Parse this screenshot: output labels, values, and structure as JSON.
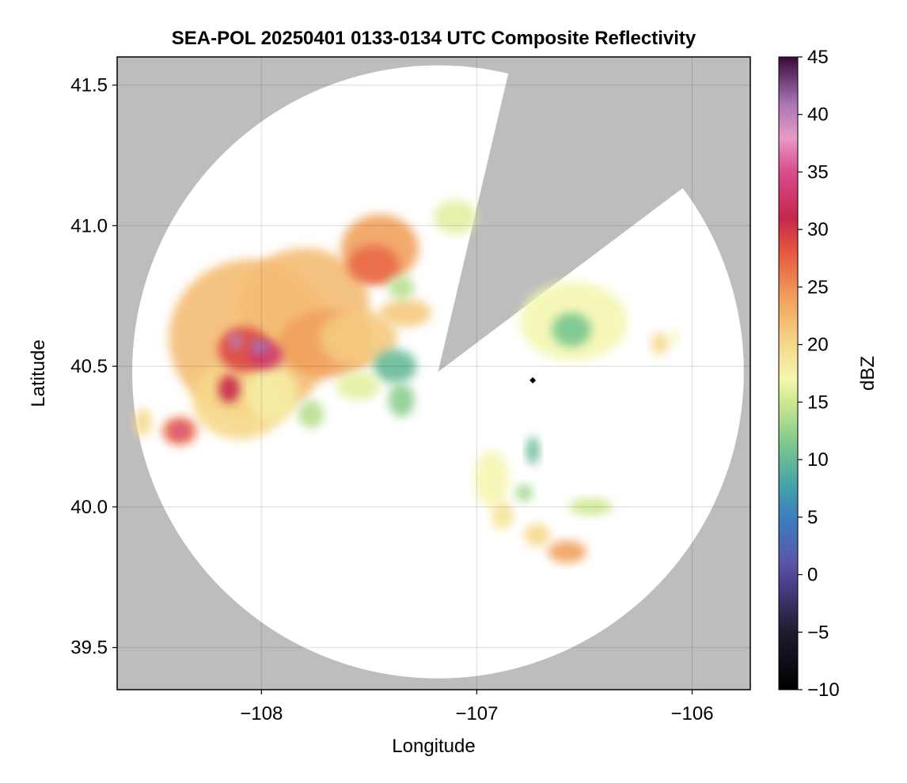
{
  "chart_data": {
    "type": "heatmap",
    "title": "SEA-POL 20250401 0133-0134 UTC Composite Reflectivity",
    "xlabel": "Longitude",
    "ylabel": "Latitude",
    "xlim": [
      -108.67,
      -105.73
    ],
    "ylim": [
      39.35,
      41.6
    ],
    "xticks": [
      -108,
      -107,
      -106
    ],
    "xtick_labels": [
      "−108",
      "−107",
      "−106"
    ],
    "yticks": [
      39.5,
      40.0,
      40.5,
      41.0,
      41.5
    ],
    "ytick_labels": [
      "39.5",
      "40.0",
      "40.5",
      "41.0",
      "41.5"
    ],
    "grid": true,
    "background_color": "#bdbdbd",
    "radar": {
      "center_lon": -107.18,
      "center_lat": 40.48,
      "range_lon_deg": 1.42,
      "range_lat_deg": 1.09,
      "blocked_sectors": [
        {
          "lon_left": -106.86,
          "lat_left": 41.52,
          "lon_right": -106.05,
          "lat_right": 41.13,
          "label": ""
        }
      ]
    },
    "marker": {
      "lon": -106.74,
      "lat": 40.45,
      "shape": "diamond",
      "color": "#000000"
    },
    "colorbar": {
      "label": "dBZ",
      "min": -10,
      "max": 45,
      "ticks": [
        -10,
        -5,
        0,
        5,
        10,
        15,
        20,
        25,
        30,
        35,
        40,
        45
      ],
      "tick_labels": [
        "−10",
        "−5",
        "0",
        "5",
        "10",
        "15",
        "20",
        "25",
        "30",
        "35",
        "40",
        "45"
      ],
      "colormap_stops": [
        {
          "v": -10,
          "c": "#000000"
        },
        {
          "v": -5,
          "c": "#1e1b2e"
        },
        {
          "v": -2,
          "c": "#3d3470"
        },
        {
          "v": 1,
          "c": "#5a55a8"
        },
        {
          "v": 5,
          "c": "#3c7fbf"
        },
        {
          "v": 8,
          "c": "#47a5a8"
        },
        {
          "v": 11,
          "c": "#76c58f"
        },
        {
          "v": 15,
          "c": "#cde88f"
        },
        {
          "v": 17,
          "c": "#f4f6b0"
        },
        {
          "v": 20,
          "c": "#f6d88a"
        },
        {
          "v": 24,
          "c": "#f1a15c"
        },
        {
          "v": 28,
          "c": "#e5583f"
        },
        {
          "v": 31,
          "c": "#c6264a"
        },
        {
          "v": 35,
          "c": "#d84d8c"
        },
        {
          "v": 38,
          "c": "#e79ac6"
        },
        {
          "v": 41,
          "c": "#a873b4"
        },
        {
          "v": 45,
          "c": "#3a0a3a"
        }
      ]
    },
    "echo_cells": [
      {
        "lon": -108.05,
        "lat": 40.6,
        "rlon": 0.38,
        "rlat": 0.28,
        "dbz": 22
      },
      {
        "lon": -107.8,
        "lat": 40.72,
        "rlon": 0.3,
        "rlat": 0.2,
        "dbz": 22
      },
      {
        "lon": -107.7,
        "lat": 40.58,
        "rlon": 0.22,
        "rlat": 0.12,
        "dbz": 24
      },
      {
        "lon": -107.55,
        "lat": 40.6,
        "rlon": 0.18,
        "rlat": 0.1,
        "dbz": 21
      },
      {
        "lon": -108.1,
        "lat": 40.38,
        "rlon": 0.22,
        "rlat": 0.14,
        "dbz": 20
      },
      {
        "lon": -107.95,
        "lat": 40.4,
        "rlon": 0.12,
        "rlat": 0.1,
        "dbz": 18
      },
      {
        "lon": -108.08,
        "lat": 40.56,
        "rlon": 0.12,
        "rlat": 0.08,
        "dbz": 29
      },
      {
        "lon": -107.98,
        "lat": 40.54,
        "rlon": 0.08,
        "rlat": 0.05,
        "dbz": 33
      },
      {
        "lon": -108.12,
        "lat": 40.59,
        "rlon": 0.03,
        "rlat": 0.03,
        "dbz": 40
      },
      {
        "lon": -108.01,
        "lat": 40.57,
        "rlon": 0.045,
        "rlat": 0.025,
        "dbz": 41
      },
      {
        "lon": -108.15,
        "lat": 40.42,
        "rlon": 0.05,
        "rlat": 0.05,
        "dbz": 31
      },
      {
        "lon": -108.38,
        "lat": 40.27,
        "rlon": 0.08,
        "rlat": 0.05,
        "dbz": 27
      },
      {
        "lon": -108.38,
        "lat": 40.27,
        "rlon": 0.035,
        "rlat": 0.025,
        "dbz": 35
      },
      {
        "lon": -108.55,
        "lat": 40.3,
        "rlon": 0.04,
        "rlat": 0.05,
        "dbz": 20
      },
      {
        "lon": -107.45,
        "lat": 40.92,
        "rlon": 0.18,
        "rlat": 0.12,
        "dbz": 24
      },
      {
        "lon": -107.48,
        "lat": 40.86,
        "rlon": 0.12,
        "rlat": 0.07,
        "dbz": 27
      },
      {
        "lon": -107.33,
        "lat": 40.69,
        "rlon": 0.12,
        "rlat": 0.05,
        "dbz": 21
      },
      {
        "lon": -107.35,
        "lat": 40.78,
        "rlon": 0.06,
        "rlat": 0.04,
        "dbz": 14
      },
      {
        "lon": -107.38,
        "lat": 40.5,
        "rlon": 0.1,
        "rlat": 0.06,
        "dbz": 10
      },
      {
        "lon": -107.35,
        "lat": 40.38,
        "rlon": 0.06,
        "rlat": 0.06,
        "dbz": 12
      },
      {
        "lon": -107.55,
        "lat": 40.43,
        "rlon": 0.1,
        "rlat": 0.05,
        "dbz": 16
      },
      {
        "lon": -107.77,
        "lat": 40.33,
        "rlon": 0.06,
        "rlat": 0.05,
        "dbz": 14
      },
      {
        "lon": -107.1,
        "lat": 41.03,
        "rlon": 0.1,
        "rlat": 0.06,
        "dbz": 16
      },
      {
        "lon": -106.55,
        "lat": 40.66,
        "rlon": 0.25,
        "rlat": 0.14,
        "dbz": 17
      },
      {
        "lon": -106.56,
        "lat": 40.63,
        "rlon": 0.09,
        "rlat": 0.06,
        "dbz": 11
      },
      {
        "lon": -106.93,
        "lat": 40.1,
        "rlon": 0.08,
        "rlat": 0.1,
        "dbz": 17
      },
      {
        "lon": -106.88,
        "lat": 39.97,
        "rlon": 0.05,
        "rlat": 0.05,
        "dbz": 19
      },
      {
        "lon": -106.72,
        "lat": 39.9,
        "rlon": 0.06,
        "rlat": 0.04,
        "dbz": 20
      },
      {
        "lon": -106.58,
        "lat": 39.84,
        "rlon": 0.09,
        "rlat": 0.04,
        "dbz": 24
      },
      {
        "lon": -106.47,
        "lat": 40.0,
        "rlon": 0.1,
        "rlat": 0.03,
        "dbz": 15
      },
      {
        "lon": -106.15,
        "lat": 40.58,
        "rlon": 0.04,
        "rlat": 0.04,
        "dbz": 20
      },
      {
        "lon": -106.08,
        "lat": 40.6,
        "rlon": 0.02,
        "rlat": 0.03,
        "dbz": 17
      },
      {
        "lon": -106.74,
        "lat": 40.2,
        "rlon": 0.03,
        "rlat": 0.05,
        "dbz": 10
      },
      {
        "lon": -106.78,
        "lat": 40.05,
        "rlon": 0.04,
        "rlat": 0.03,
        "dbz": 13
      }
    ]
  }
}
